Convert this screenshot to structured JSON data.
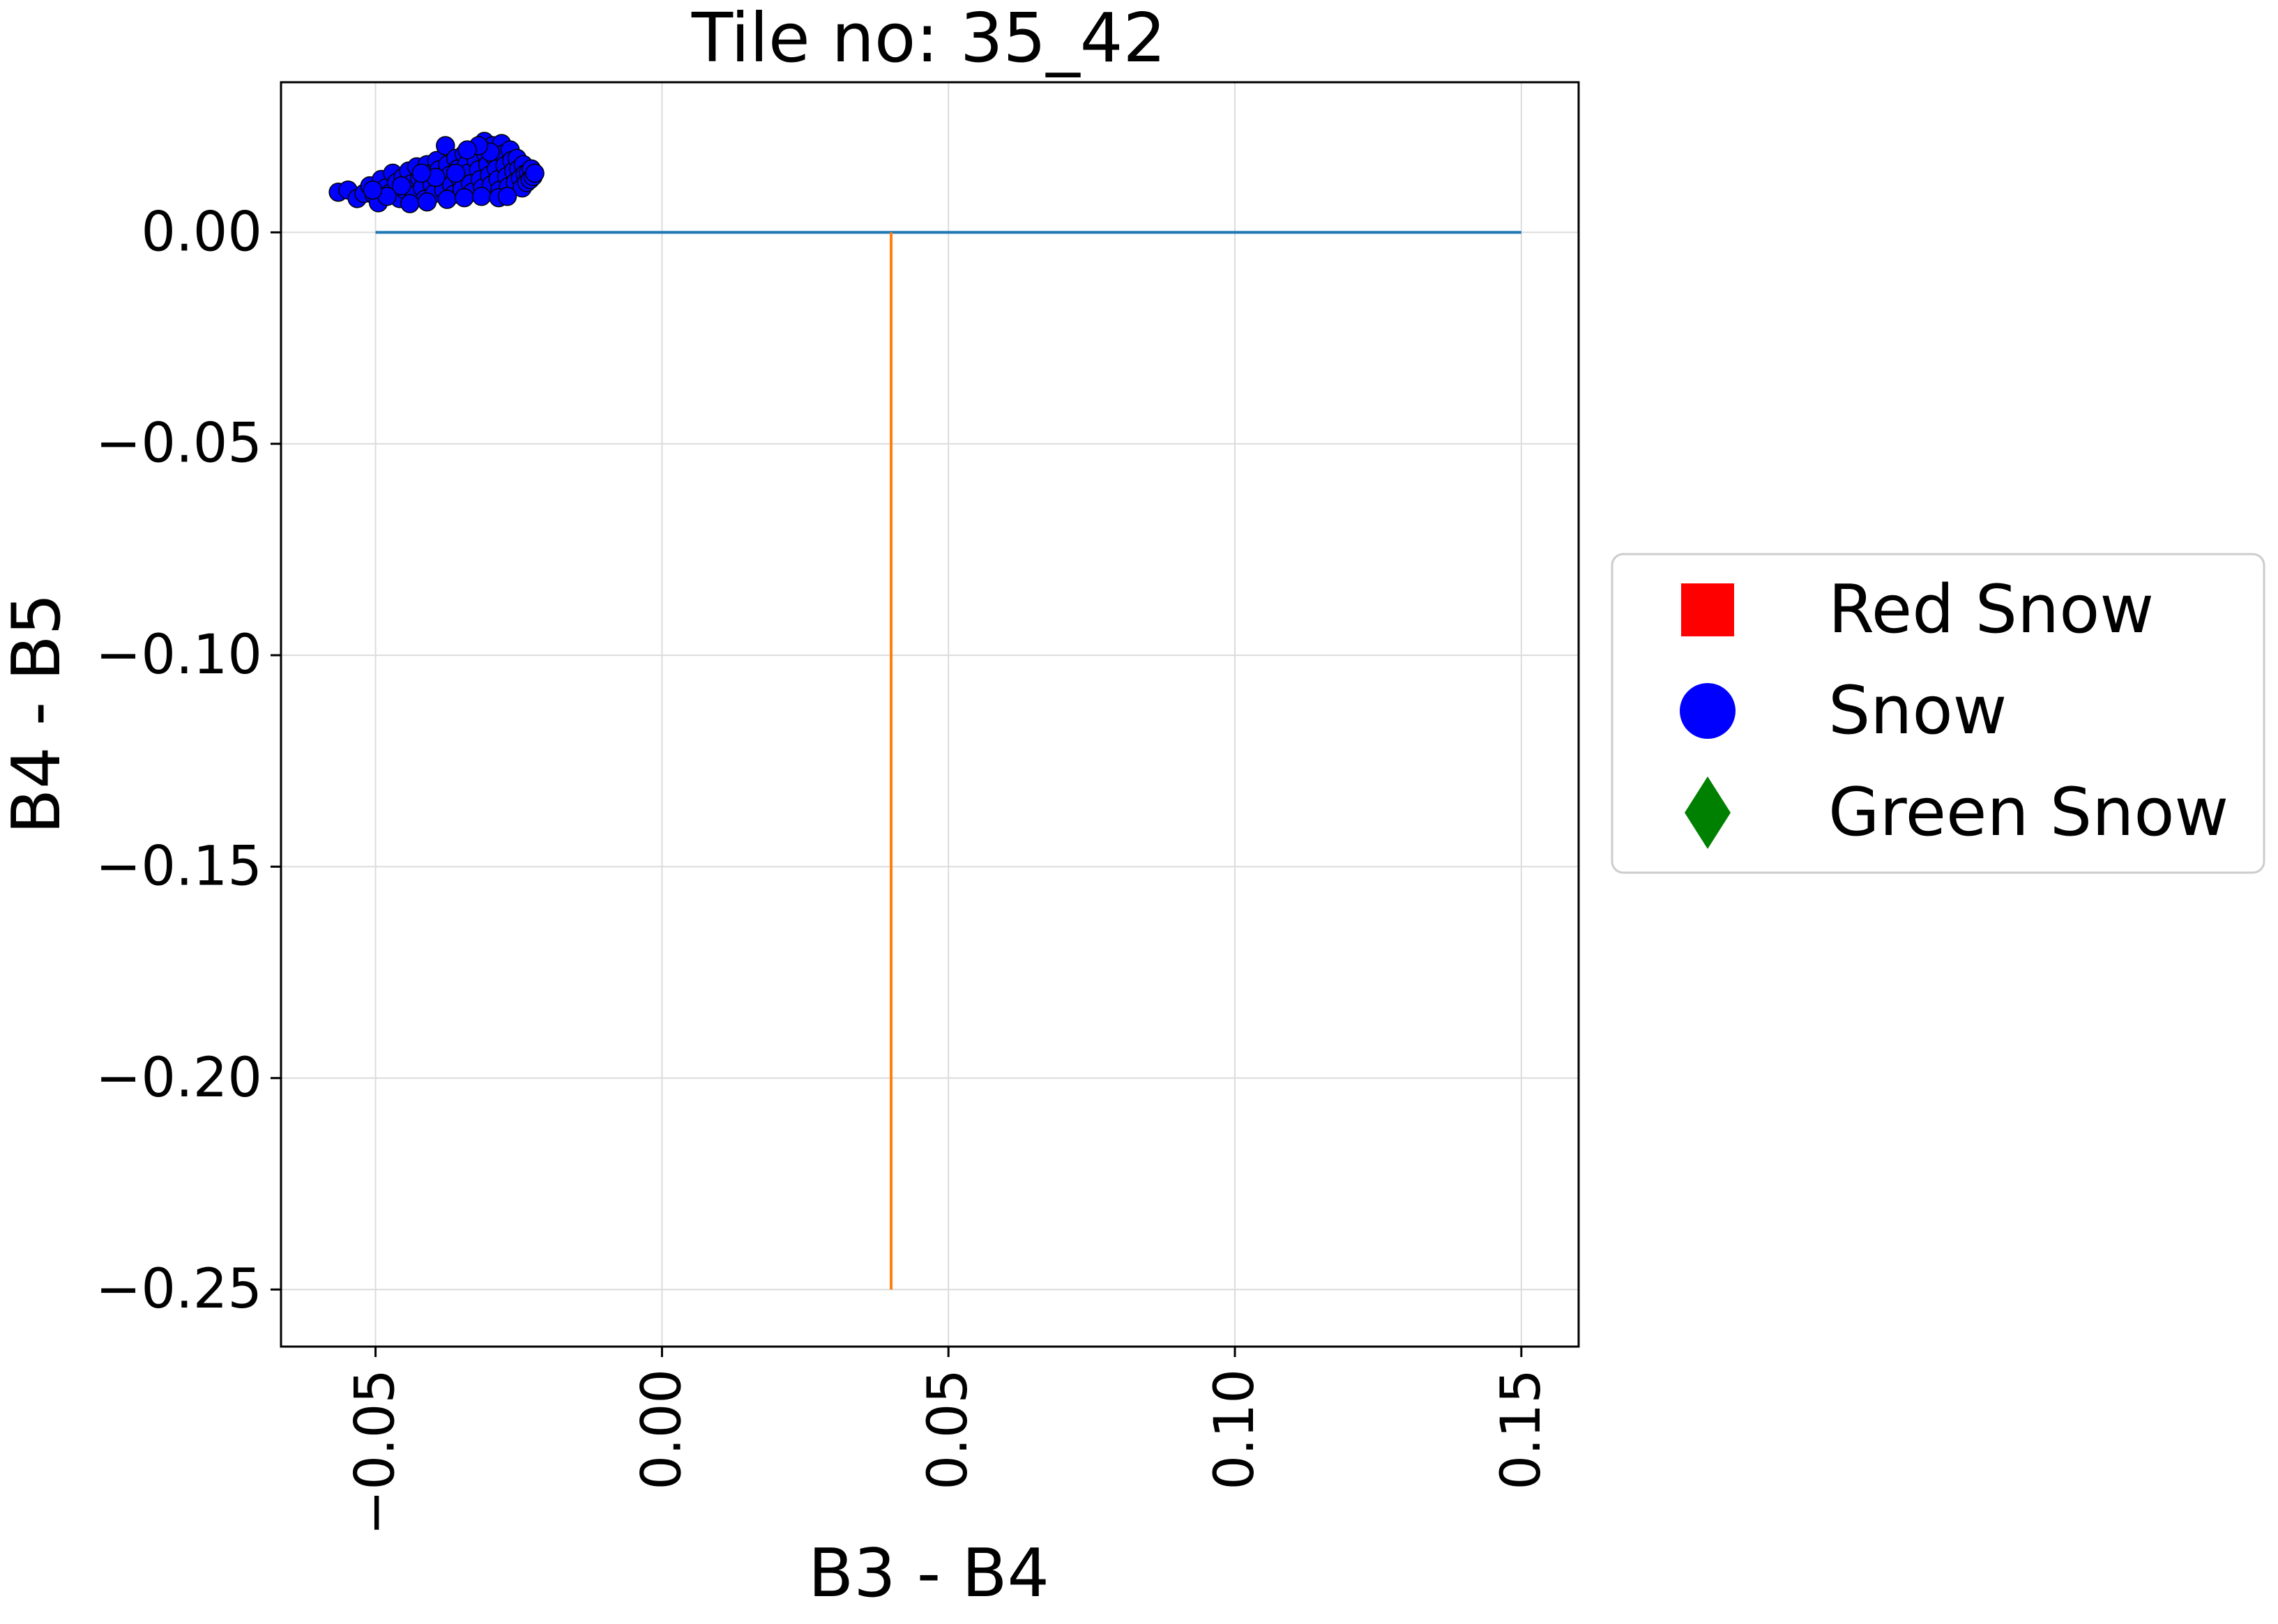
{
  "chart_data": {
    "type": "scatter",
    "title": "Tile no: 35_42",
    "xlabel": "B3 - B4",
    "ylabel": "B4 - B5",
    "xlim": [
      -0.0665,
      0.16
    ],
    "ylim": [
      -0.2635,
      0.0355
    ],
    "x_ticks": [
      -0.05,
      0.0,
      0.05,
      0.1,
      0.15
    ],
    "x_tick_labels": [
      "−0.05",
      "0.00",
      "0.05",
      "0.10",
      "0.15"
    ],
    "y_ticks": [
      0.0,
      -0.05,
      -0.1,
      -0.15,
      -0.2,
      -0.25
    ],
    "y_tick_labels": [
      "0.00",
      "−0.05",
      "−0.10",
      "−0.15",
      "−0.20",
      "−0.25"
    ],
    "grid": true,
    "legend_position": "outside right, vertically centered",
    "legend": [
      {
        "name": "Red Snow",
        "marker": "square",
        "color": "#ff0000"
      },
      {
        "name": "Snow",
        "marker": "circle",
        "color": "#0000ff"
      },
      {
        "name": "Green Snow",
        "marker": "diamond",
        "color": "#008000"
      }
    ],
    "lines": [
      {
        "color": "#1f77b4",
        "x": [
          -0.05,
          0.15
        ],
        "y": [
          0.0,
          0.0
        ]
      },
      {
        "color": "#ff7f0e",
        "x": [
          0.04,
          0.04
        ],
        "y": [
          0.0,
          -0.25
        ]
      }
    ],
    "series": [
      {
        "name": "Red Snow",
        "color": "#ff0000",
        "marker": "square",
        "points": []
      },
      {
        "name": "Snow",
        "color": "#0000ff",
        "marker": "circle",
        "points": [
          [
            -0.0565,
            0.0095
          ],
          [
            -0.0548,
            0.01
          ],
          [
            -0.0532,
            0.008
          ],
          [
            -0.052,
            0.0092
          ],
          [
            -0.051,
            0.011
          ],
          [
            -0.0502,
            0.0088
          ],
          [
            -0.0495,
            0.007
          ],
          [
            -0.049,
            0.0125
          ],
          [
            -0.0482,
            0.0105
          ],
          [
            -0.0475,
            0.0092
          ],
          [
            -0.047,
            0.014
          ],
          [
            -0.0463,
            0.0118
          ],
          [
            -0.0458,
            0.008
          ],
          [
            -0.0452,
            0.013
          ],
          [
            -0.0448,
            0.01
          ],
          [
            -0.0442,
            0.0145
          ],
          [
            -0.0437,
            0.0115
          ],
          [
            -0.0432,
            0.0088
          ],
          [
            -0.0428,
            0.0155
          ],
          [
            -0.0423,
            0.0128
          ],
          [
            -0.0418,
            0.0105
          ],
          [
            -0.0414,
            0.0078
          ],
          [
            -0.041,
            0.016
          ],
          [
            -0.0405,
            0.0138
          ],
          [
            -0.0401,
            0.0112
          ],
          [
            -0.0397,
            0.0092
          ],
          [
            -0.0393,
            0.017
          ],
          [
            -0.0389,
            0.0148
          ],
          [
            -0.0385,
            0.0122
          ],
          [
            -0.0381,
            0.01
          ],
          [
            -0.0378,
            0.0205
          ],
          [
            -0.0374,
            0.016
          ],
          [
            -0.037,
            0.0135
          ],
          [
            -0.0367,
            0.0112
          ],
          [
            -0.0363,
            0.009
          ],
          [
            -0.036,
            0.0175
          ],
          [
            -0.0356,
            0.015
          ],
          [
            -0.0352,
            0.0125
          ],
          [
            -0.0349,
            0.0102
          ],
          [
            -0.0345,
            0.0185
          ],
          [
            -0.0341,
            0.016
          ],
          [
            -0.0338,
            0.014
          ],
          [
            -0.0334,
            0.0115
          ],
          [
            -0.0331,
            0.0095
          ],
          [
            -0.0327,
            0.0195
          ],
          [
            -0.0324,
            0.017
          ],
          [
            -0.032,
            0.0148
          ],
          [
            -0.0317,
            0.0125
          ],
          [
            -0.0313,
            0.0105
          ],
          [
            -0.031,
            0.0215
          ],
          [
            -0.0307,
            0.0185
          ],
          [
            -0.0304,
            0.016
          ],
          [
            -0.0301,
            0.0135
          ],
          [
            -0.0298,
            0.0112
          ],
          [
            -0.0295,
            0.0205
          ],
          [
            -0.0292,
            0.0178
          ],
          [
            -0.0289,
            0.015
          ],
          [
            -0.0286,
            0.0125
          ],
          [
            -0.0283,
            0.01
          ],
          [
            -0.028,
            0.021
          ],
          [
            -0.0277,
            0.0185
          ],
          [
            -0.0274,
            0.0158
          ],
          [
            -0.0271,
            0.0132
          ],
          [
            -0.0268,
            0.0108
          ],
          [
            -0.0265,
            0.0195
          ],
          [
            -0.0262,
            0.017
          ],
          [
            -0.0259,
            0.0145
          ],
          [
            -0.0256,
            0.0118
          ],
          [
            -0.0253,
            0.0175
          ],
          [
            -0.025,
            0.015
          ],
          [
            -0.0247,
            0.0128
          ],
          [
            -0.0244,
            0.0105
          ],
          [
            -0.0242,
            0.016
          ],
          [
            -0.0239,
            0.0138
          ],
          [
            -0.0236,
            0.0118
          ],
          [
            -0.0233,
            0.0142
          ],
          [
            -0.023,
            0.0125
          ],
          [
            -0.0228,
            0.015
          ],
          [
            -0.0225,
            0.0132
          ],
          [
            -0.0222,
            0.014
          ],
          [
            -0.044,
            0.0068
          ],
          [
            -0.041,
            0.0072
          ],
          [
            -0.0375,
            0.0078
          ],
          [
            -0.0345,
            0.0082
          ],
          [
            -0.0315,
            0.0085
          ],
          [
            -0.0285,
            0.0082
          ],
          [
            -0.027,
            0.0085
          ],
          [
            -0.03,
            0.019
          ],
          [
            -0.032,
            0.0205
          ],
          [
            -0.034,
            0.0195
          ],
          [
            -0.036,
            0.014
          ],
          [
            -0.0395,
            0.013
          ],
          [
            -0.042,
            0.014
          ],
          [
            -0.0455,
            0.011
          ],
          [
            -0.048,
            0.0085
          ],
          [
            -0.0505,
            0.01
          ]
        ]
      },
      {
        "name": "Green Snow",
        "color": "#008000",
        "marker": "diamond",
        "points": []
      }
    ]
  }
}
